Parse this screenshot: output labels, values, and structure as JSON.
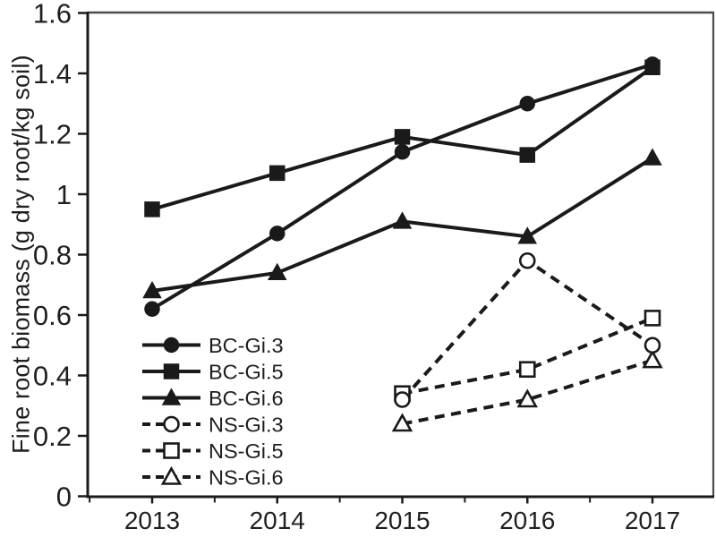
{
  "chart_data": {
    "type": "line",
    "title": "",
    "xlabel": "",
    "ylabel": "Fine root biomass (g dry root/kg soil)",
    "x": [
      2013,
      2014,
      2015,
      2016,
      2017
    ],
    "xtick_labels": [
      "2013",
      "2014",
      "2015",
      "2016",
      "2017"
    ],
    "yticks": [
      0,
      0.2,
      0.4,
      0.6,
      0.8,
      1,
      1.2,
      1.4,
      1.6
    ],
    "ytick_labels": [
      "0",
      "0.2",
      "0.4",
      "0.6",
      "0.8",
      "1",
      "1.2",
      "1.4",
      "1.6"
    ],
    "ylim": [
      0,
      1.6
    ],
    "grid": false,
    "legend_position": "lower-left-inside",
    "series": [
      {
        "name": "BC-Gi.3",
        "marker": "circle",
        "fill": "filled",
        "line": "solid",
        "values": [
          0.62,
          0.87,
          1.14,
          1.3,
          1.43
        ]
      },
      {
        "name": "BC-Gi.5",
        "marker": "square",
        "fill": "filled",
        "line": "solid",
        "values": [
          0.95,
          1.07,
          1.19,
          1.13,
          1.42
        ]
      },
      {
        "name": "BC-Gi.6",
        "marker": "triangle",
        "fill": "filled",
        "line": "solid",
        "values": [
          0.68,
          0.74,
          0.91,
          0.86,
          1.12
        ]
      },
      {
        "name": "NS-Gi.3",
        "marker": "circle",
        "fill": "open",
        "line": "dashed",
        "values": [
          null,
          null,
          0.32,
          0.78,
          0.5
        ]
      },
      {
        "name": "NS-Gi.5",
        "marker": "square",
        "fill": "open",
        "line": "dashed",
        "values": [
          null,
          null,
          0.34,
          0.42,
          0.59
        ]
      },
      {
        "name": "NS-Gi.6",
        "marker": "triangle",
        "fill": "open",
        "line": "dashed",
        "values": [
          null,
          null,
          0.24,
          0.32,
          0.45
        ]
      }
    ],
    "colors": {
      "line": "#1a1a1a",
      "frame": "#4d4d4d",
      "text": "#1f1f1f",
      "background": "#ffffff"
    }
  }
}
